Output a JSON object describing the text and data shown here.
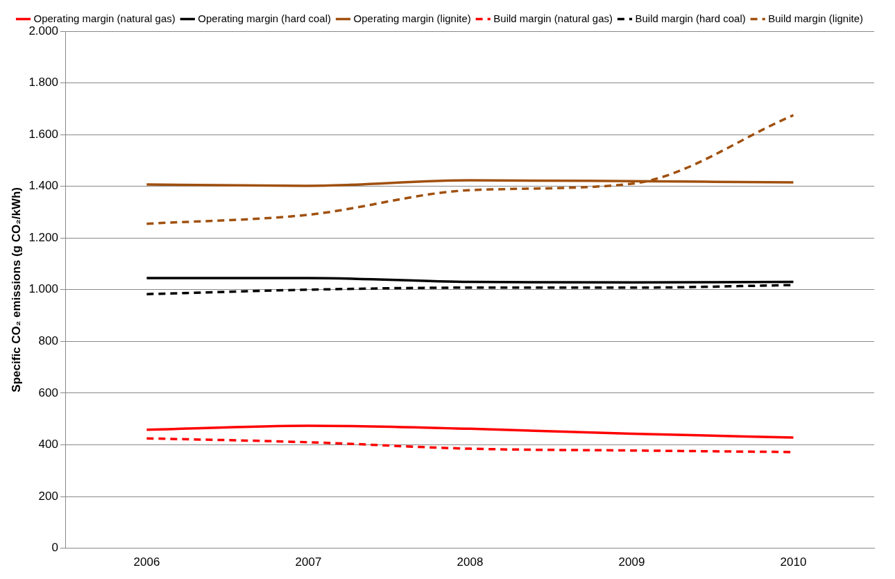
{
  "chart_data": {
    "type": "line",
    "ylabel": "Specific CO₂ emissions (g CO₂/kWh)",
    "categories": [
      "2006",
      "2007",
      "2008",
      "2009",
      "2010"
    ],
    "series": [
      {
        "name": "Operating margin (natural gas)",
        "color": "#ff0000",
        "line_style": "solid",
        "values": [
          458,
          474,
          462,
          443,
          428
        ]
      },
      {
        "name": "Operating margin (hard coal)",
        "color": "#000000",
        "line_style": "solid",
        "values": [
          1045,
          1045,
          1030,
          1028,
          1030
        ]
      },
      {
        "name": "Operating margin (lignite)",
        "color": "#a0500f",
        "line_style": "solid",
        "values": [
          1407,
          1402,
          1423,
          1420,
          1415
        ]
      },
      {
        "name": "Build margin (natural gas)",
        "color": "#ff0000",
        "line_style": "dashed",
        "values": [
          425,
          410,
          385,
          378,
          372
        ]
      },
      {
        "name": "Build margin (hard coal)",
        "color": "#000000",
        "line_style": "dashed",
        "values": [
          983,
          1000,
          1008,
          1008,
          1018
        ]
      },
      {
        "name": "Build margin (lignite)",
        "color": "#a0500f",
        "line_style": "dashed",
        "values": [
          1255,
          1290,
          1385,
          1410,
          1675
        ]
      }
    ],
    "ylim": [
      0,
      2000
    ],
    "yticks": [
      0,
      200,
      400,
      600,
      800,
      {
        "value": 1000,
        "label": "1.000"
      },
      {
        "value": 1200,
        "label": "1.200"
      },
      {
        "value": 1400,
        "label": "1.400"
      },
      {
        "value": 1600,
        "label": "1.600"
      },
      {
        "value": 1800,
        "label": "1.800"
      },
      {
        "value": 2000,
        "label": "2.000"
      }
    ],
    "grid": "y",
    "legend": "top",
    "marker": "none"
  }
}
